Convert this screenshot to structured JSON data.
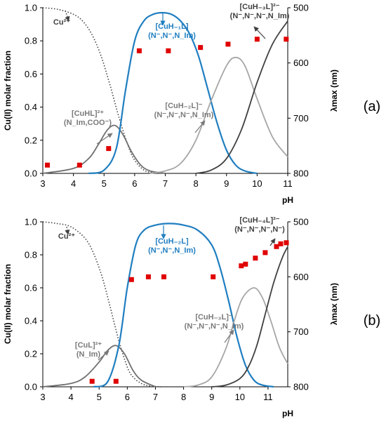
{
  "colors": {
    "cu2": "#444444",
    "species1": "#707070",
    "species2_blue": "#1f7ec0",
    "species3": "#a6a6a6",
    "species4": "#404040",
    "marker": "#e00000",
    "ann_gray": "#7a7a7a",
    "ann_dark": "#404040"
  },
  "chart_data": [
    {
      "type": "line",
      "panel_label": "(a)",
      "xlabel": "pH",
      "ylabel_left": "Cu(II) molar fraction",
      "ylabel_right": "λmax (nm)",
      "xlim": [
        3,
        11
      ],
      "xticks": [
        "3",
        "4",
        "5",
        "6",
        "7",
        "8",
        "9",
        "10",
        "11"
      ],
      "ylim_left": [
        0,
        1
      ],
      "yticks_left": [
        "0.0",
        "0.2",
        "0.4",
        "0.6",
        "0.8",
        "1.0"
      ],
      "ylim_right": [
        800,
        500
      ],
      "yticks_right": [
        "500",
        "600",
        "700",
        "800"
      ],
      "series": [
        {
          "name": "Cu2+",
          "label_text": "Cu²⁺",
          "style": "dotted",
          "color": "#444444",
          "x": [
            3.0,
            3.5,
            4.0,
            4.3,
            4.6,
            4.9,
            5.2,
            5.5,
            5.8,
            6.0,
            6.3,
            6.6,
            7.0
          ],
          "y": [
            1.0,
            0.99,
            0.96,
            0.92,
            0.84,
            0.71,
            0.53,
            0.33,
            0.16,
            0.08,
            0.02,
            0.005,
            0.0
          ]
        },
        {
          "name": "[CuHL]2+",
          "label_text": "[CuHL]²⁺",
          "sublabel_text": "(N_Im,COO⁻)",
          "style": "solid",
          "color": "#707070",
          "x": [
            3.0,
            4.0,
            4.5,
            4.8,
            5.1,
            5.35,
            5.6,
            5.9,
            6.2,
            6.5,
            7.0
          ],
          "y": [
            0.0,
            0.03,
            0.09,
            0.17,
            0.26,
            0.29,
            0.24,
            0.13,
            0.05,
            0.015,
            0.0
          ]
        },
        {
          "name": "[CuH-1L]",
          "label_text": "[CuH₋₁L]",
          "sublabel_text": "(N⁻,N⁻,N_Im)",
          "style": "solid",
          "color": "#1f7ec0",
          "x": [
            4.5,
            5.0,
            5.4,
            5.7,
            6.0,
            6.3,
            6.6,
            6.9,
            7.2,
            7.5,
            7.8,
            8.1,
            8.4,
            8.7,
            9.0,
            9.3,
            9.6,
            10.0
          ],
          "y": [
            0.0,
            0.02,
            0.15,
            0.5,
            0.8,
            0.92,
            0.96,
            0.97,
            0.96,
            0.92,
            0.84,
            0.7,
            0.5,
            0.3,
            0.14,
            0.05,
            0.015,
            0.0
          ]
        },
        {
          "name": "[CuH-2L]-",
          "label_text": "[CuH₋₂L]⁻",
          "sublabel_text": "(N⁻,N⁻,N⁻,N_Im)",
          "style": "solid",
          "color": "#a6a6a6",
          "x": [
            6.5,
            7.0,
            7.5,
            8.0,
            8.5,
            9.0,
            9.3,
            9.6,
            10.0,
            10.5,
            11.0
          ],
          "y": [
            0.0,
            0.015,
            0.06,
            0.2,
            0.44,
            0.65,
            0.7,
            0.65,
            0.45,
            0.22,
            0.1
          ]
        },
        {
          "name": "[CuH-3L]2-",
          "label_text": "[CuH₋₃L]²⁻",
          "sublabel_text": "(N⁻,N⁻,N⁻,N_Im)",
          "style": "solid",
          "color": "#404040",
          "x": [
            8.0,
            8.5,
            9.0,
            9.5,
            10.0,
            10.5,
            11.0
          ],
          "y": [
            0.0,
            0.02,
            0.09,
            0.27,
            0.55,
            0.78,
            0.92
          ]
        }
      ],
      "markers": {
        "axis": "right",
        "color": "#e00000",
        "x": [
          3.15,
          4.2,
          5.15,
          6.15,
          7.1,
          8.15,
          9.05,
          10.0,
          10.95
        ],
        "y": [
          785,
          785,
          755,
          578,
          578,
          572,
          566,
          557,
          557
        ]
      }
    },
    {
      "type": "line",
      "panel_label": "(b)",
      "xlabel": "pH",
      "ylabel_left": "Cu(II) molar fraction",
      "ylabel_right": "λmax (nm)",
      "xlim": [
        3,
        11.7
      ],
      "xticks": [
        "3",
        "4",
        "5",
        "6",
        "7",
        "8",
        "9",
        "10",
        "11"
      ],
      "ylim_left": [
        0,
        1
      ],
      "yticks_left": [
        "0.0",
        "0.2",
        "0.4",
        "0.6",
        "0.8",
        "1.0"
      ],
      "ylim_right": [
        800,
        500
      ],
      "yticks_right": [
        "500",
        "600",
        "700",
        "800"
      ],
      "series": [
        {
          "name": "Cu2+",
          "label_text": "Cu²⁺",
          "style": "dotted",
          "color": "#444444",
          "x": [
            3.0,
            3.5,
            4.0,
            4.5,
            4.8,
            5.1,
            5.4,
            5.7,
            6.0,
            6.2,
            6.5,
            6.8,
            7.2
          ],
          "y": [
            1.0,
            0.99,
            0.97,
            0.9,
            0.81,
            0.67,
            0.48,
            0.28,
            0.12,
            0.06,
            0.02,
            0.005,
            0.0
          ]
        },
        {
          "name": "[CuL]2+",
          "label_text": "[CuL]²⁺",
          "sublabel_text": "(N_Im)",
          "style": "solid",
          "color": "#707070",
          "x": [
            3.0,
            4.0,
            4.5,
            5.0,
            5.3,
            5.6,
            5.9,
            6.2,
            6.5,
            7.0
          ],
          "y": [
            0.0,
            0.02,
            0.06,
            0.15,
            0.22,
            0.25,
            0.2,
            0.1,
            0.04,
            0.0
          ]
        },
        {
          "name": "[CuH-2L]",
          "label_text": "[CuH₋₂L]",
          "sublabel_text": "(N⁻,N⁻,N_Im)",
          "style": "solid",
          "color": "#1f7ec0",
          "x": [
            4.8,
            5.3,
            5.7,
            6.0,
            6.3,
            6.6,
            7.0,
            7.5,
            8.0,
            8.5,
            9.0,
            9.3,
            9.6,
            9.9,
            10.2,
            10.5,
            10.8,
            11.2
          ],
          "y": [
            0.0,
            0.03,
            0.25,
            0.6,
            0.86,
            0.95,
            0.98,
            0.99,
            0.98,
            0.95,
            0.86,
            0.72,
            0.52,
            0.3,
            0.13,
            0.04,
            0.01,
            0.0
          ]
        },
        {
          "name": "[CuH-3L]-",
          "label_text": "[CuH₋₃L]⁻",
          "sublabel_text": "(N⁻,N⁻,N⁻,N_Im)",
          "style": "solid",
          "color": "#a6a6a6",
          "x": [
            8.0,
            8.5,
            9.0,
            9.5,
            9.8,
            10.1,
            10.5,
            10.8,
            11.1,
            11.4,
            11.7
          ],
          "y": [
            0.0,
            0.01,
            0.06,
            0.23,
            0.4,
            0.54,
            0.6,
            0.54,
            0.4,
            0.24,
            0.14
          ]
        },
        {
          "name": "[CuH-4L]2-",
          "label_text": "[CuH₋₄L]²⁻",
          "sublabel_text": "(N⁻,N⁻,N⁻,N⁻)",
          "style": "solid",
          "color": "#404040",
          "x": [
            9.0,
            9.5,
            10.0,
            10.3,
            10.6,
            10.9,
            11.2,
            11.5,
            11.7
          ],
          "y": [
            0.0,
            0.01,
            0.05,
            0.12,
            0.25,
            0.44,
            0.63,
            0.78,
            0.85
          ]
        }
      ],
      "markers": {
        "axis": "right",
        "color": "#e00000",
        "x": [
          4.75,
          5.6,
          6.15,
          6.75,
          7.3,
          9.05,
          10.05,
          10.2,
          10.55,
          10.9,
          11.3,
          11.45,
          11.65
        ],
        "y": [
          790,
          790,
          605,
          600,
          600,
          600,
          580,
          577,
          566,
          556,
          545,
          540,
          538
        ]
      }
    }
  ]
}
